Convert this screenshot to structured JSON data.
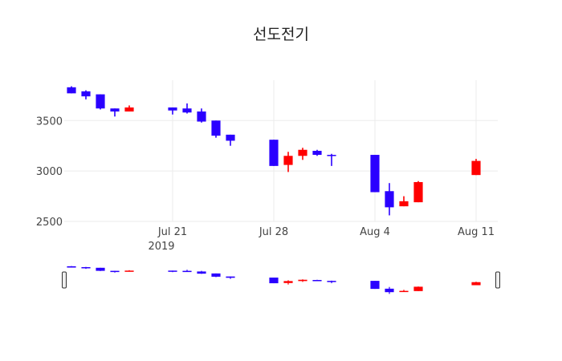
{
  "chart_data": {
    "type": "candlestick",
    "title": "선도전기",
    "xlabel": "",
    "ylabel": "",
    "ylim": [
      2500,
      3900
    ],
    "y_ticks": [
      2500,
      3000,
      3500
    ],
    "x_ticks": [
      "Jul 21",
      "Jul 28",
      "Aug 4",
      "Aug 11"
    ],
    "x_tick_dates": [
      "2019-07-21",
      "2019-07-28",
      "2019-08-04",
      "2019-08-11"
    ],
    "x_year_label": "2019",
    "x_range": [
      "2019-07-13T12:00",
      "2019-08-12T12:00"
    ],
    "grid": true,
    "range_slider": true,
    "colors": {
      "increasing": "#ff0000",
      "decreasing": "#2a00ff"
    },
    "series": [
      {
        "date": "2019-07-14",
        "open": 3830,
        "high": 3840,
        "low": 3770,
        "close": 3770
      },
      {
        "date": "2019-07-15",
        "open": 3790,
        "high": 3800,
        "low": 3710,
        "close": 3740
      },
      {
        "date": "2019-07-16",
        "open": 3760,
        "high": 3760,
        "low": 3610,
        "close": 3620
      },
      {
        "date": "2019-07-17",
        "open": 3620,
        "high": 3620,
        "low": 3540,
        "close": 3590
      },
      {
        "date": "2019-07-18",
        "open": 3590,
        "high": 3650,
        "low": 3590,
        "close": 3630
      },
      {
        "date": "2019-07-21",
        "open": 3630,
        "high": 3630,
        "low": 3560,
        "close": 3600
      },
      {
        "date": "2019-07-22",
        "open": 3620,
        "high": 3670,
        "low": 3570,
        "close": 3580
      },
      {
        "date": "2019-07-23",
        "open": 3590,
        "high": 3620,
        "low": 3480,
        "close": 3490
      },
      {
        "date": "2019-07-24",
        "open": 3500,
        "high": 3500,
        "low": 3330,
        "close": 3350
      },
      {
        "date": "2019-07-25",
        "open": 3360,
        "high": 3360,
        "low": 3250,
        "close": 3300
      },
      {
        "date": "2019-07-28",
        "open": 3310,
        "high": 3310,
        "low": 3050,
        "close": 3050
      },
      {
        "date": "2019-07-29",
        "open": 3060,
        "high": 3190,
        "low": 2990,
        "close": 3150
      },
      {
        "date": "2019-07-30",
        "open": 3150,
        "high": 3230,
        "low": 3110,
        "close": 3210
      },
      {
        "date": "2019-07-31",
        "open": 3200,
        "high": 3210,
        "low": 3150,
        "close": 3160
      },
      {
        "date": "2019-08-01",
        "open": 3160,
        "high": 3170,
        "low": 3050,
        "close": 3150
      },
      {
        "date": "2019-08-04",
        "open": 3160,
        "high": 3160,
        "low": 2790,
        "close": 2790
      },
      {
        "date": "2019-08-05",
        "open": 2800,
        "high": 2880,
        "low": 2560,
        "close": 2640
      },
      {
        "date": "2019-08-06",
        "open": 2650,
        "high": 2750,
        "low": 2650,
        "close": 2700
      },
      {
        "date": "2019-08-07",
        "open": 2690,
        "high": 2900,
        "low": 2690,
        "close": 2890
      },
      {
        "date": "2019-08-11",
        "open": 2960,
        "high": 3120,
        "low": 2960,
        "close": 3100
      }
    ]
  }
}
